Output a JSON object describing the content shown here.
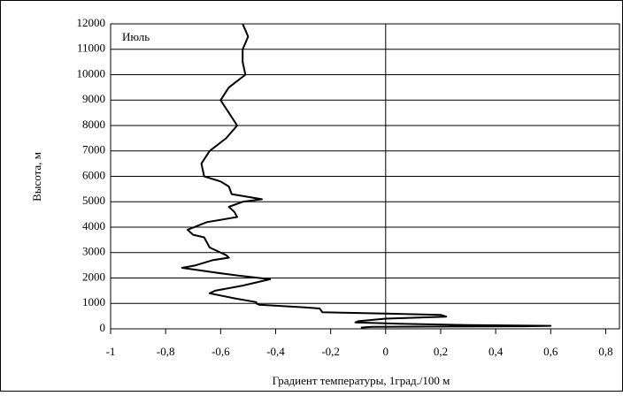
{
  "chart_data": {
    "type": "line",
    "annotation": "Июль",
    "x_label": "Градиент температуры, 1град./100 м",
    "y_label": "Высота, м",
    "color": "#000000",
    "grid": true,
    "x": [
      -0.52,
      -0.5,
      -0.52,
      -0.52,
      -0.51,
      -0.57,
      -0.6,
      -0.57,
      -0.54,
      -0.58,
      -0.64,
      -0.67,
      -0.66,
      -0.6,
      -0.57,
      -0.56,
      -0.45,
      -0.52,
      -0.57,
      -0.55,
      -0.54,
      -0.65,
      -0.72,
      -0.7,
      -0.66,
      -0.64,
      -0.58,
      -0.57,
      -0.63,
      -0.69,
      -0.74,
      -0.61,
      -0.54,
      -0.42,
      -0.52,
      -0.62,
      -0.64,
      -0.55,
      -0.47,
      -0.47,
      -0.46,
      -0.3,
      -0.24,
      -0.23,
      0.0,
      0.2,
      0.22,
      0.0,
      -0.1,
      -0.11,
      0.05,
      0.3,
      0.6,
      0.5,
      -0.05,
      -0.09
    ],
    "values": [
      12000,
      11500,
      11000,
      10500,
      10000,
      9500,
      9000,
      8500,
      8000,
      7500,
      7000,
      6500,
      6000,
      5800,
      5600,
      5300,
      5100,
      5000,
      4800,
      4600,
      4400,
      4200,
      3900,
      3700,
      3600,
      3200,
      2900,
      2800,
      2700,
      2500,
      2400,
      2200,
      2100,
      1950,
      1700,
      1500,
      1400,
      1200,
      1050,
      1000,
      950,
      850,
      800,
      650,
      600,
      550,
      480,
      400,
      300,
      250,
      200,
      150,
      120,
      100,
      80,
      50
    ],
    "xlim": [
      -1,
      0.85
    ],
    "xticks": [
      -1,
      {
        "value": -0.8,
        "label": "-0,8"
      },
      {
        "value": -0.6,
        "label": "-0,6"
      },
      {
        "value": -0.4,
        "label": "-0,4"
      },
      {
        "value": -0.2,
        "label": "-0,2"
      },
      0,
      {
        "value": 0.2,
        "label": "0,2"
      },
      {
        "value": 0.4,
        "label": "0,4"
      },
      {
        "value": 0.6,
        "label": "0,6"
      },
      {
        "value": 0.8,
        "label": "0,8"
      }
    ],
    "ylim": [
      0,
      12000
    ],
    "yticks": [
      0,
      1000,
      2000,
      3000,
      4000,
      5000,
      6000,
      7000,
      8000,
      9000,
      10000,
      11000,
      12000
    ]
  }
}
